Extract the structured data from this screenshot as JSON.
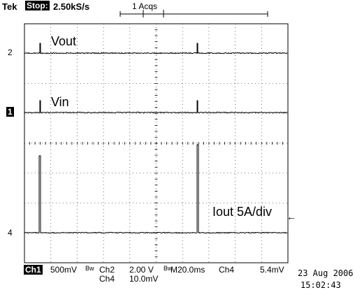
{
  "header": {
    "brand": "Tek",
    "state": "Stop:",
    "sample_rate": "2.50kS/s",
    "acquisitions": "1 Acqs"
  },
  "traces": {
    "ch2_label": "Vout",
    "ch1_label": "Vin",
    "ch4_label": "Iout 5A/div"
  },
  "markers": {
    "ch2": "2",
    "ch1": "1",
    "ch4": "4"
  },
  "status": {
    "ch1_badge": "Ch1",
    "ch1_scale": "500mV",
    "ch2_label": "Ch2",
    "ch2_scale": "2.00 V",
    "timebase": "M20.0ms",
    "trigger_source": "Ch4",
    "trigger_level": "5.4mV",
    "ch4_label": "Ch4",
    "ch4_scale": "10.0mV",
    "date": "23 Aug 2006",
    "time": "15:02:43"
  },
  "colors": {
    "background": "#ffffff",
    "trace": "#000000",
    "grid": "#000000"
  }
}
